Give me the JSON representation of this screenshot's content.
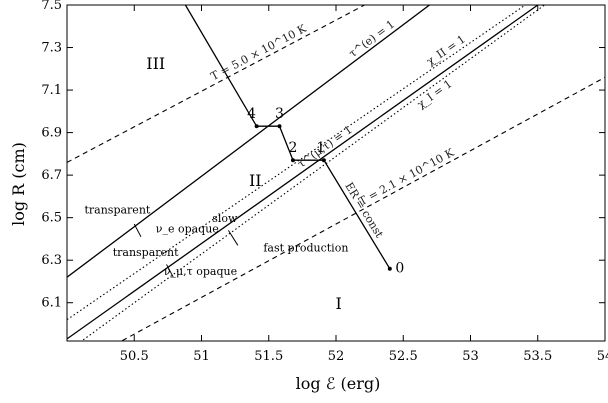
{
  "chart_data": {
    "type": "line",
    "xlabel": "log ℰ (erg)",
    "ylabel": "log R (cm)",
    "xlim": [
      50.0,
      54.0
    ],
    "ylim": [
      5.92,
      7.5
    ],
    "x_ticks": [
      {
        "value": 50.5,
        "label": "50.5"
      },
      {
        "value": 51,
        "label": "51"
      },
      {
        "value": 51.5,
        "label": "51.5"
      },
      {
        "value": 52,
        "label": "52"
      },
      {
        "value": 52.5,
        "label": "52.5"
      },
      {
        "value": 53,
        "label": "53"
      },
      {
        "value": 53.5,
        "label": "53.5"
      },
      {
        "value": 54,
        "label": "54"
      }
    ],
    "y_ticks": [
      {
        "value": 6.1,
        "label": "6.1"
      },
      {
        "value": 6.3,
        "label": "6.3"
      },
      {
        "value": 6.5,
        "label": "6.5"
      },
      {
        "value": 6.7,
        "label": "6.7"
      },
      {
        "value": 6.9,
        "label": "6.9"
      },
      {
        "value": 7.1,
        "label": "7.1"
      },
      {
        "value": 7.3,
        "label": "7.3"
      },
      {
        "value": 7.5,
        "label": "7.5"
      }
    ],
    "series": [
      {
        "name": "T = 5.0 × 10^10 K",
        "style": "dashed",
        "points": [
          [
            50.0,
            6.76
          ],
          [
            52.6,
            7.63
          ]
        ]
      },
      {
        "name": "T = 2.1 × 10^10 K",
        "style": "dashed",
        "points": [
          [
            50.0,
            5.78
          ],
          [
            54.0,
            7.16
          ]
        ]
      },
      {
        "name": "τ^(e) = 1",
        "style": "solid",
        "points": [
          [
            50.0,
            6.22
          ],
          [
            52.8,
            7.55
          ]
        ]
      },
      {
        "name": "χ_II = 1",
        "style": "dotted",
        "points": [
          [
            50.0,
            6.02
          ],
          [
            53.43,
            7.51
          ]
        ]
      },
      {
        "name": "τ^(μ,τ) = 1",
        "style": "solid",
        "points": [
          [
            50.0,
            5.93
          ],
          [
            53.5,
            7.5
          ]
        ]
      },
      {
        "name": "χ_I = 1",
        "style": "dotted",
        "points": [
          [
            50.0,
            5.87
          ],
          [
            53.55,
            7.5
          ]
        ]
      },
      {
        "name": "ER = const",
        "style": "solid",
        "points": [
          [
            50.88,
            7.5
          ],
          [
            51.41,
            6.93
          ],
          [
            51.58,
            6.93
          ],
          [
            51.68,
            6.77
          ],
          [
            51.91,
            6.77
          ],
          [
            52.4,
            6.26
          ]
        ]
      }
    ],
    "points": [
      {
        "label": "0",
        "x": 52.4,
        "y": 6.26
      },
      {
        "label": "1",
        "x": 51.91,
        "y": 6.77
      },
      {
        "label": "2",
        "x": 51.68,
        "y": 6.77
      },
      {
        "label": "3",
        "x": 51.58,
        "y": 6.93
      },
      {
        "label": "4",
        "x": 51.41,
        "y": 6.93
      }
    ],
    "regions": [
      {
        "label": "I",
        "x": 52.02,
        "y": 6.07
      },
      {
        "label": "II",
        "x": 51.4,
        "y": 6.65
      },
      {
        "label": "III",
        "x": 50.66,
        "y": 7.2
      }
    ],
    "annotations": [
      {
        "text": "transparent",
        "x": 50.13,
        "y": 6.52
      },
      {
        "text": "ν_e opaque",
        "x": 50.66,
        "y": 6.43
      },
      {
        "text": "transparent",
        "x": 50.34,
        "y": 6.32
      },
      {
        "text": "ν_μ,τ opaque",
        "x": 50.72,
        "y": 6.23
      },
      {
        "text": "slow",
        "x": 51.08,
        "y": 6.48
      },
      {
        "text": "fast production",
        "x": 51.46,
        "y": 6.34
      }
    ],
    "grid": false,
    "legend": "none"
  }
}
